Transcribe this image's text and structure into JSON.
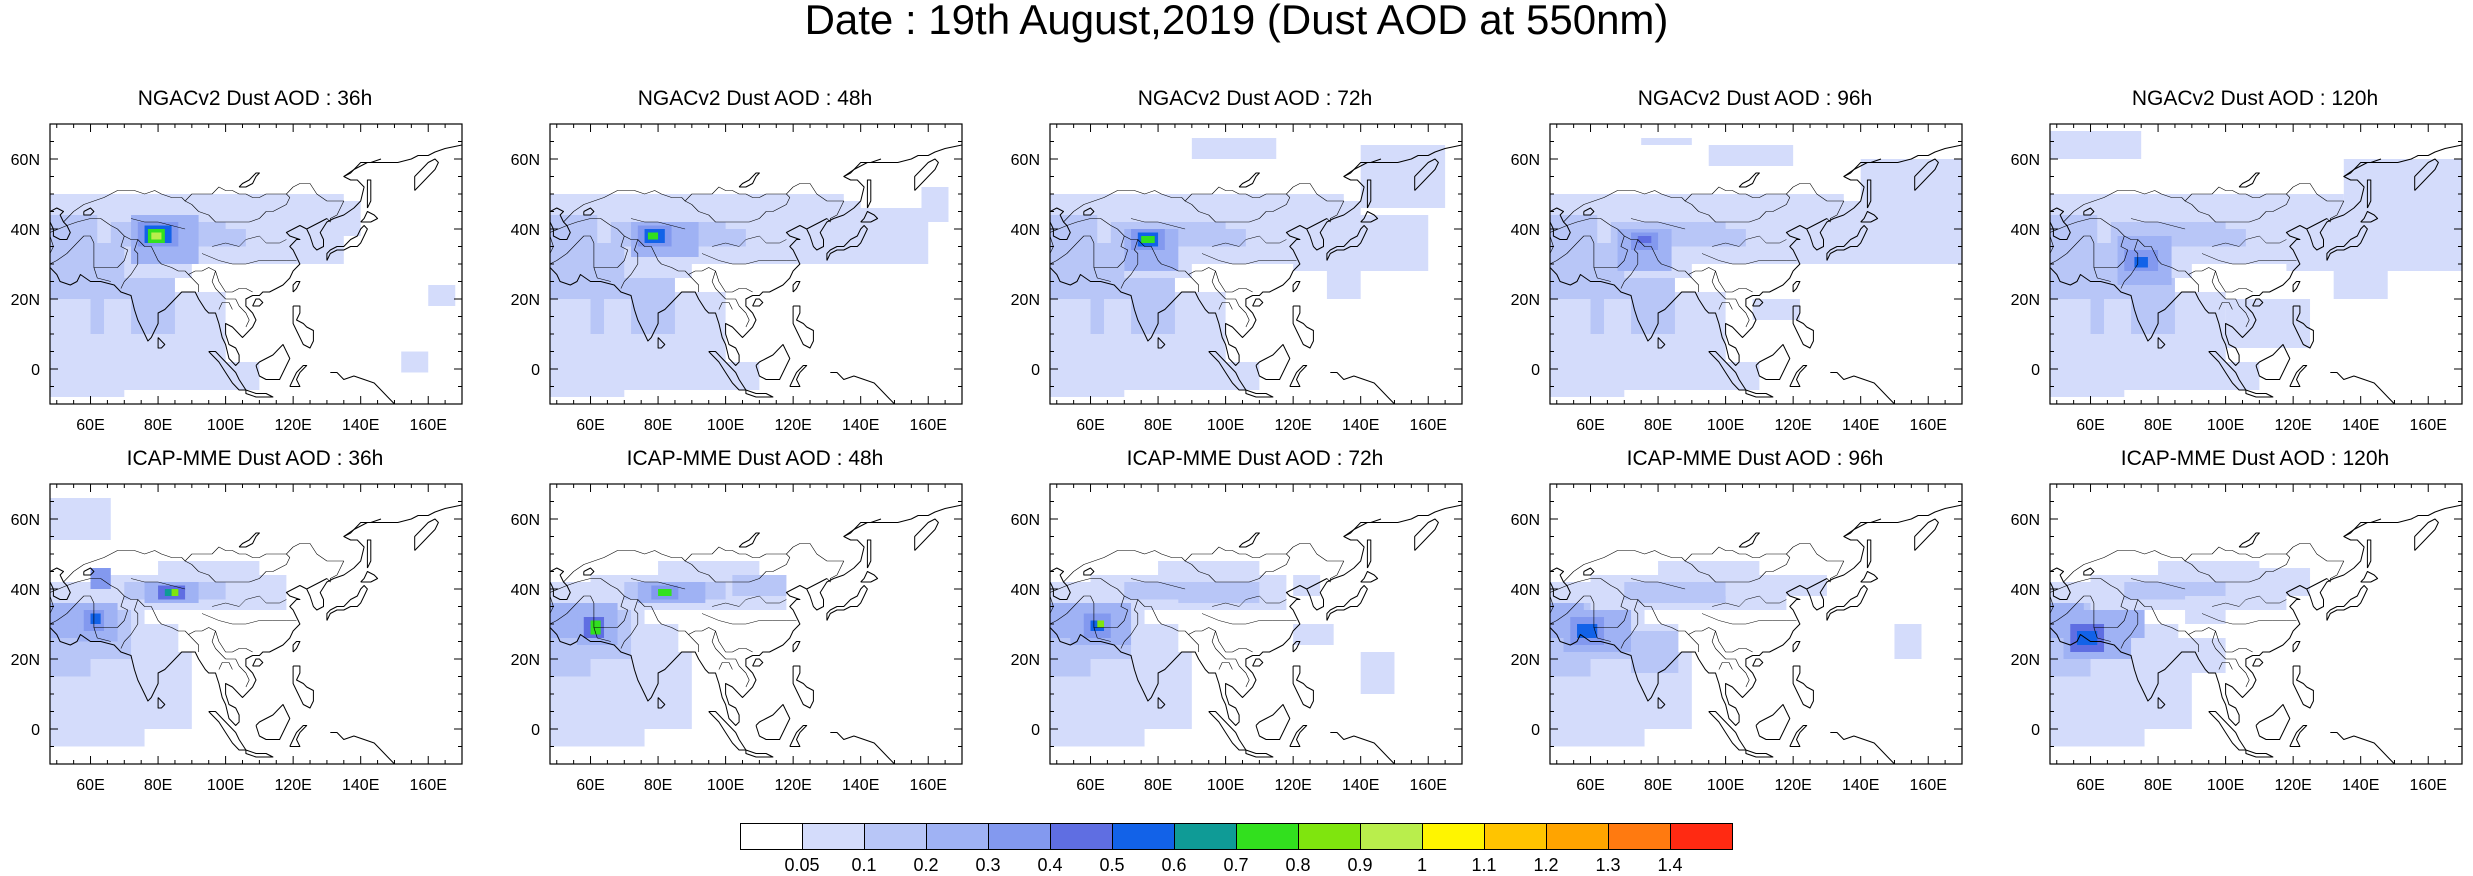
{
  "title": "Date : 19th August,2019 (Dust AOD at 550nm)",
  "axes": {
    "lon_ticks": [
      "60E",
      "80E",
      "100E",
      "120E",
      "140E",
      "160E"
    ],
    "lon_values": [
      60,
      80,
      100,
      120,
      140,
      160
    ],
    "lat_ticks": [
      "60N",
      "40N",
      "20N",
      "0"
    ],
    "lat_values": [
      60,
      40,
      20,
      0
    ],
    "lon_range": [
      48,
      170
    ],
    "lat_range": [
      -10,
      70
    ]
  },
  "panels": [
    {
      "title": "NGACv2 Dust AOD : 36h",
      "row": 0,
      "col": 0
    },
    {
      "title": "NGACv2 Dust AOD : 48h",
      "row": 0,
      "col": 1
    },
    {
      "title": "NGACv2 Dust AOD : 72h",
      "row": 0,
      "col": 2
    },
    {
      "title": "NGACv2 Dust AOD : 96h",
      "row": 0,
      "col": 3
    },
    {
      "title": "NGACv2 Dust AOD : 120h",
      "row": 0,
      "col": 4
    },
    {
      "title": "ICAP-MME Dust AOD : 36h",
      "row": 1,
      "col": 0
    },
    {
      "title": "ICAP-MME Dust AOD : 48h",
      "row": 1,
      "col": 1
    },
    {
      "title": "ICAP-MME Dust AOD : 72h",
      "row": 1,
      "col": 2
    },
    {
      "title": "ICAP-MME Dust AOD : 96h",
      "row": 1,
      "col": 3
    },
    {
      "title": "ICAP-MME Dust AOD : 120h",
      "row": 1,
      "col": 4
    }
  ],
  "colorbar": {
    "labels": [
      "0.05",
      "0.1",
      "0.2",
      "0.3",
      "0.4",
      "0.5",
      "0.6",
      "0.7",
      "0.8",
      "0.9",
      "1",
      "1.1",
      "1.2",
      "1.3",
      "1.4"
    ],
    "colors": [
      "#ffffff",
      "#d4dcfb",
      "#b8c6f7",
      "#9fb2f4",
      "#8399ef",
      "#5f6ee2",
      "#1262e8",
      "#0f9b96",
      "#32e01e",
      "#7fe50e",
      "#b9ee4c",
      "#fff500",
      "#ffc400",
      "#ffa400",
      "#ff7a10",
      "#ff2a12"
    ]
  }
}
